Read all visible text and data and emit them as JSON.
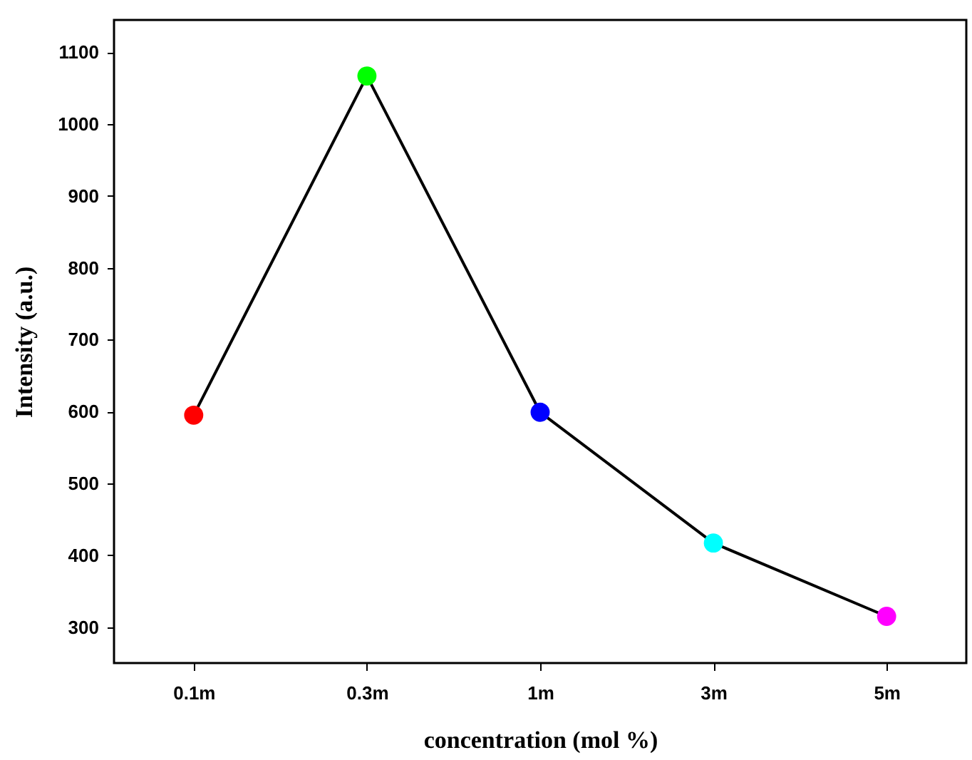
{
  "chart_data": {
    "type": "line",
    "xlabel": "concentration (mol %)",
    "ylabel": "Intensity (a.u.)",
    "categories": [
      "0.1m",
      "0.3m",
      "1m",
      "3m",
      "5m"
    ],
    "series": [
      {
        "color": "#000000",
        "values": [
          595,
          1067,
          599,
          417,
          315
        ]
      }
    ],
    "colors": [
      "#ff0000",
      "#00ff00",
      "#0000ff",
      "#00ffff",
      "#ff00ff"
    ],
    "marker": "circle",
    "line_style": "solid",
    "ylim": [
      250,
      1145
    ],
    "yticks": [
      300,
      400,
      500,
      600,
      700,
      800,
      900,
      1000,
      1100
    ],
    "grid": false
  }
}
